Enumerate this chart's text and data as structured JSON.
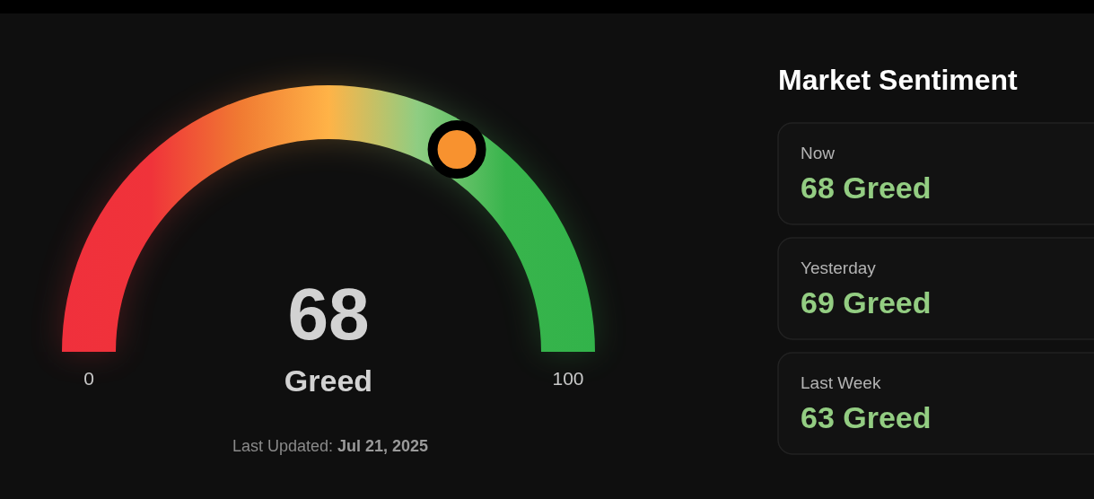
{
  "chart_data": [
    {
      "type": "other",
      "values": [
        68
      ],
      "data_labels": true,
      "color": "#f8922f",
      "annotations": [
        "0",
        "100",
        "Greed",
        "Last Updated:",
        "Jul 21, 2025"
      ]
    },
    {
      "type": "other",
      "title": "Market Sentiment",
      "annotations": [
        "Now",
        "68 Greed",
        "Yesterday",
        "69 Greed",
        "Last Week",
        "63 Greed"
      ]
    }
  ]
}
